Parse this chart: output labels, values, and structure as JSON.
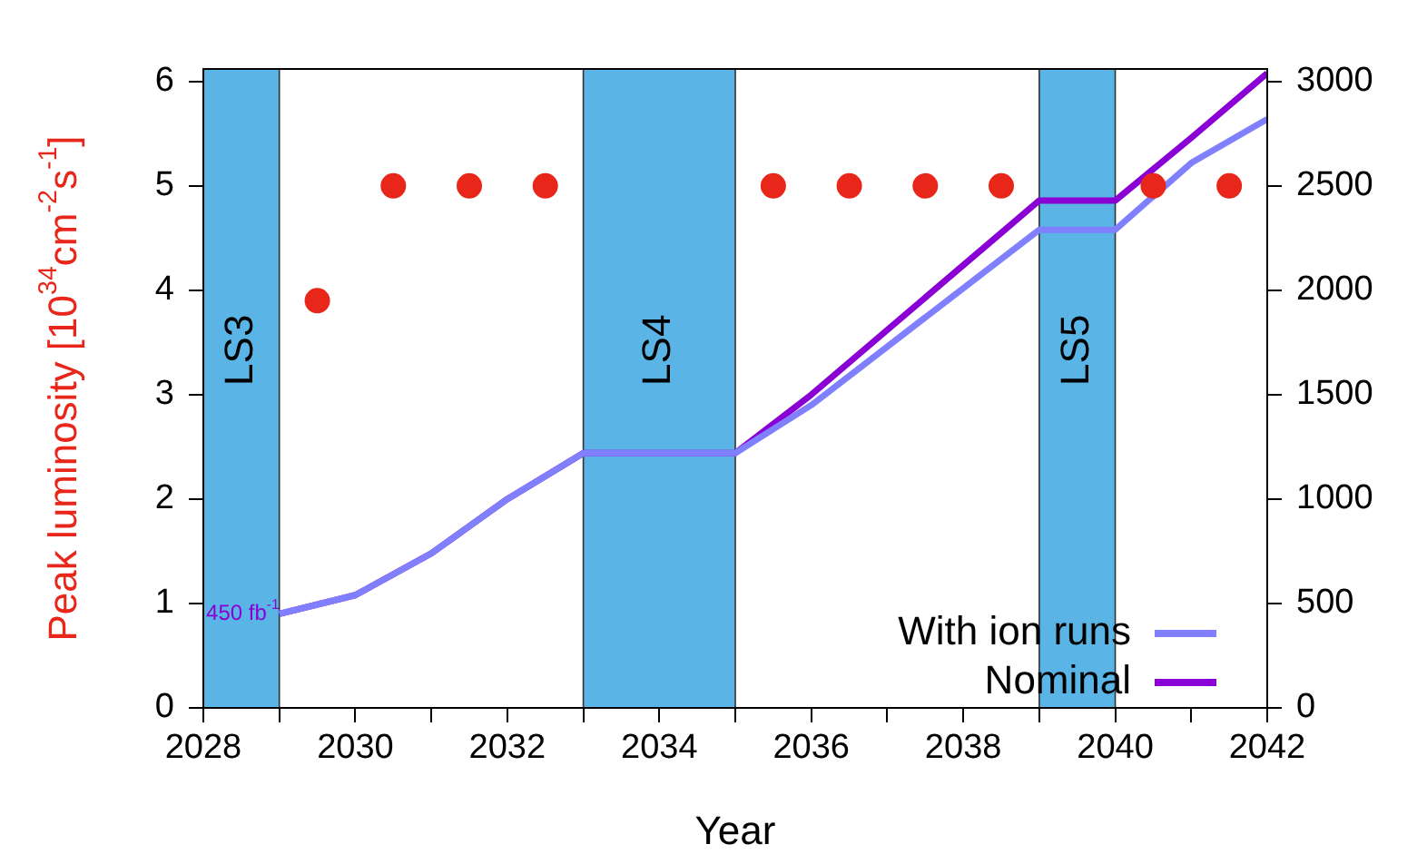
{
  "chart_data": {
    "type": "line",
    "xlabel": "Year",
    "ylabel": "Peak luminosity [10$^{34}$cm$^{-2}$s$^{-1}$]",
    "xlim": [
      2028,
      2042
    ],
    "xticks": [
      2028,
      {
        "value": 2029,
        "label": null
      },
      2030,
      {
        "value": 2031,
        "label": null
      },
      2032,
      {
        "value": 2033,
        "label": null
      },
      2034,
      {
        "value": 2035,
        "label": null
      },
      2036,
      {
        "value": 2037,
        "label": null
      },
      2038,
      {
        "value": 2039,
        "label": null
      },
      2040,
      {
        "value": 2041,
        "label": null
      },
      2042
    ],
    "ylim": [
      0,
      6.12
    ],
    "yticks": [
      0,
      1,
      2,
      3,
      4,
      5,
      6
    ],
    "y2lim": [
      0,
      3060
    ],
    "y2ticks": [
      0,
      500,
      1000,
      1500,
      2000,
      2500,
      3000
    ],
    "grid": false,
    "legend": "bottom right",
    "series": [
      {
        "type": "scatter",
        "color": "#e8261a",
        "marker": "circle",
        "x": [
          2029.5,
          2030.5,
          2031.5,
          2032.5,
          2035.5,
          2036.5,
          2037.5,
          2038.5,
          2040.5,
          2041.5
        ],
        "values": [
          3.9,
          5,
          5,
          5,
          5,
          5,
          5,
          5,
          5,
          5
        ]
      },
      {
        "type": "line",
        "name": "With ion runs",
        "axis": "y2",
        "color": "#8080ff",
        "x": [
          2029,
          2030,
          2031,
          2032,
          2033,
          2035,
          2036,
          2039,
          2040,
          2041,
          2042
        ],
        "values": [
          450,
          540,
          740,
          1000,
          1220,
          1220,
          1450,
          2290,
          2290,
          2610,
          2820
        ]
      },
      {
        "type": "line",
        "name": "Nominal",
        "axis": "y2",
        "color": "#8a00d4",
        "x": [
          2029,
          2030,
          2031,
          2032,
          2033,
          2035,
          2036,
          2039,
          2040,
          2041,
          2042
        ],
        "values": [
          450,
          540,
          740,
          1000,
          1220,
          1220,
          1500,
          2430,
          2430,
          2730,
          3040
        ]
      }
    ],
    "bands": [
      {
        "axis": "x",
        "from": 2028,
        "to": 2029,
        "label": "LS3",
        "color": "#5ab4e5"
      },
      {
        "axis": "x",
        "from": 2033,
        "to": 2035,
        "label": "LS4",
        "color": "#5ab4e5"
      },
      {
        "axis": "x",
        "from": 2039,
        "to": 2040,
        "label": "LS5",
        "color": "#5ab4e5"
      }
    ],
    "annotations": [
      {
        "text": "450 fb$^{-1}$",
        "x": 2029,
        "y": 0.9
      }
    ]
  }
}
